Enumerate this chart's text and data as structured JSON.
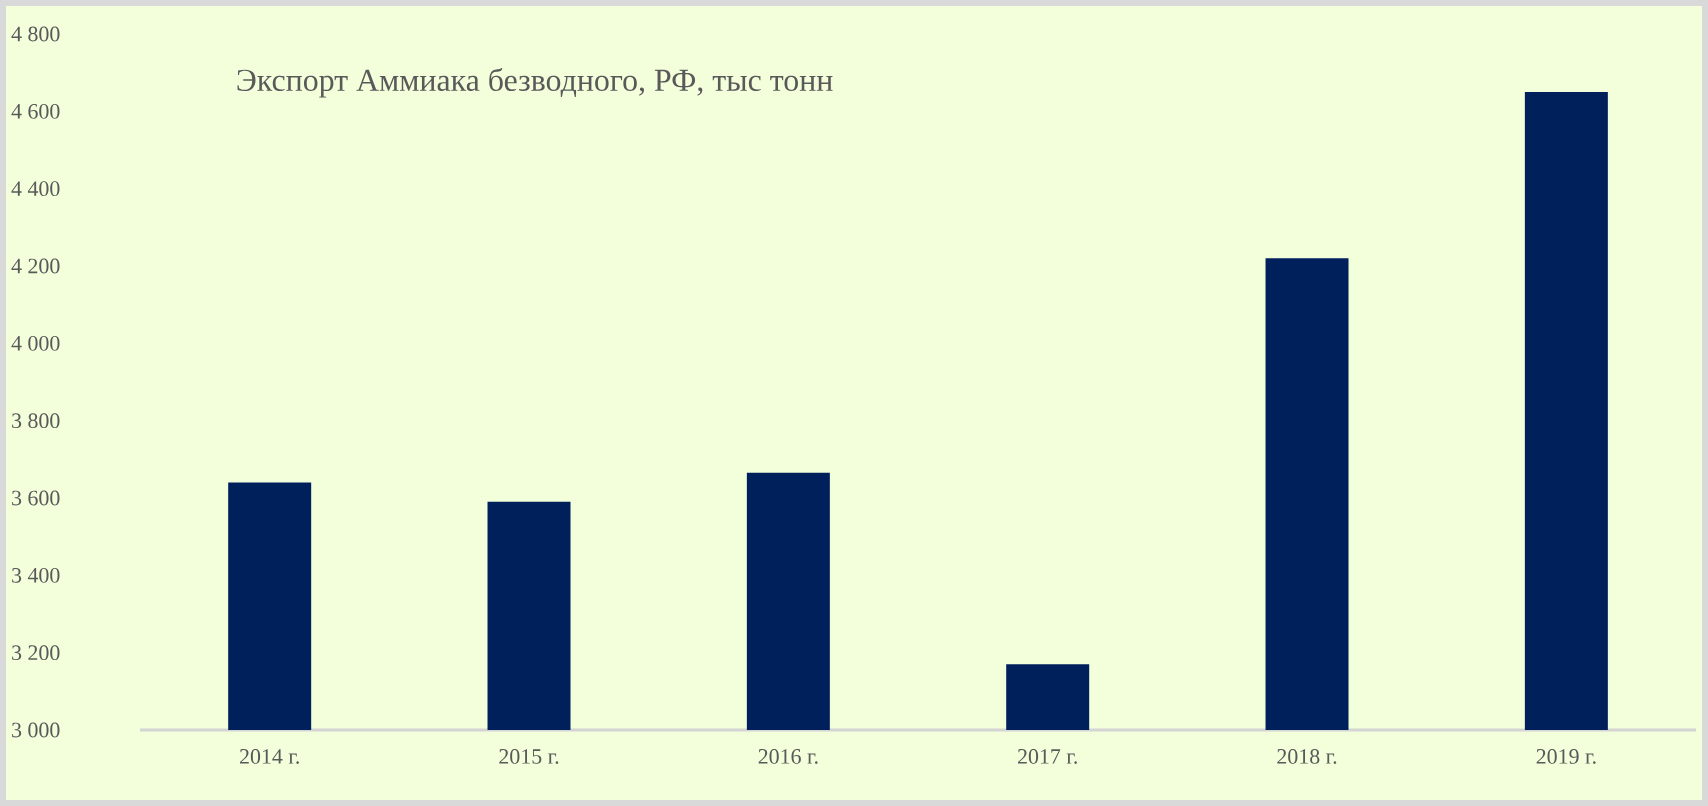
{
  "chart_data": {
    "type": "bar",
    "title": "Экспорт Аммиака безводного, РФ, тыс тонн",
    "categories": [
      "2014 г.",
      "2015 г.",
      "2016 г.",
      "2017 г.",
      "2018 г.",
      "2019 г."
    ],
    "values": [
      3640,
      3590,
      3665,
      3170,
      4220,
      4650
    ],
    "color": "#00205c",
    "ylim": [
      3000,
      4800
    ],
    "yticks": [
      {
        "value": 3000,
        "label": "3 000"
      },
      {
        "value": 3200,
        "label": "3 200"
      },
      {
        "value": 3400,
        "label": "3 400"
      },
      {
        "value": 3600,
        "label": "3 600"
      },
      {
        "value": 3800,
        "label": "3 800"
      },
      {
        "value": 4000,
        "label": "4 000"
      },
      {
        "value": 4200,
        "label": "4 200"
      },
      {
        "value": 4400,
        "label": "4 400"
      },
      {
        "value": 4600,
        "label": "4 600"
      },
      {
        "value": 4800,
        "label": "4 800"
      }
    ]
  }
}
